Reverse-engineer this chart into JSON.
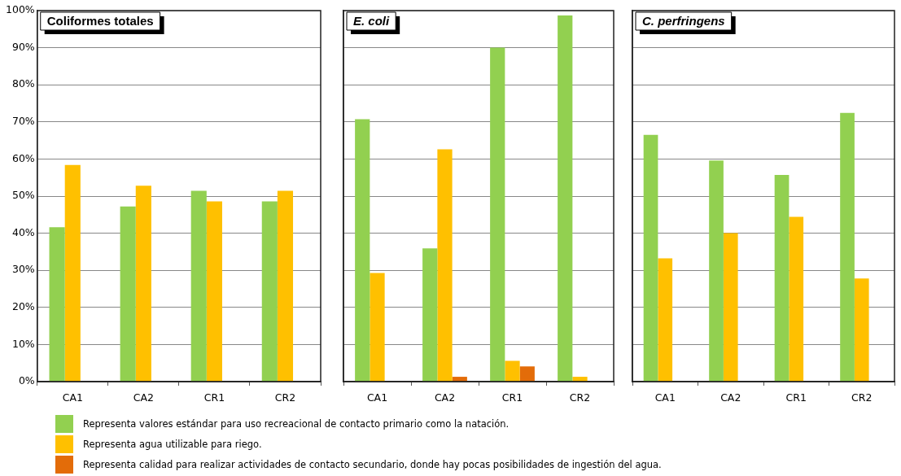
{
  "chart_data": [
    {
      "type": "bar",
      "title": "Coliformes totales",
      "categories": [
        "CA1",
        "CA2",
        "CR1",
        "CR2"
      ],
      "series": [
        {
          "name": "Representa valores estándar para uso recreacional de contacto primario como la natación.",
          "color": "#92d050",
          "values": [
            41.6,
            47.2,
            51.4,
            48.6
          ]
        },
        {
          "name": "Representa agua utilizable para riego.",
          "color": "#ffc000",
          "values": [
            58.4,
            52.8,
            48.6,
            51.4
          ]
        },
        {
          "name": "Representa calidad para realizar actividades de contacto secundario, donde hay pocas posibilidades de ingestión del agua.",
          "color": "#e36c09",
          "values": [
            null,
            null,
            null,
            null
          ]
        }
      ],
      "ylim": [
        0,
        100
      ],
      "yticks": [
        {
          "value": 0,
          "label": "0%"
        },
        {
          "value": 10,
          "label": "10%"
        },
        {
          "value": 20,
          "label": "20%"
        },
        {
          "value": 30,
          "label": "30%"
        },
        {
          "value": 40,
          "label": "40%"
        },
        {
          "value": 50,
          "label": "50%"
        },
        {
          "value": 60,
          "label": "60%"
        },
        {
          "value": 70,
          "label": "70%"
        },
        {
          "value": 80,
          "label": "80%"
        },
        {
          "value": 90,
          "label": "90%"
        },
        {
          "value": 100,
          "label": "100%"
        }
      ],
      "grid": "y",
      "legend": "bottom"
    },
    {
      "type": "bar",
      "title": "E. coli",
      "categories": [
        "CA1",
        "CA2",
        "CR1",
        "CR2"
      ],
      "series": [
        {
          "color": "#92d050",
          "values": [
            70.7,
            35.9,
            90,
            98.7
          ]
        },
        {
          "color": "#ffc000",
          "values": [
            29.3,
            62.6,
            5.6,
            1.3
          ]
        },
        {
          "color": "#e36c09",
          "values": [
            null,
            1.3,
            4.1,
            null
          ]
        }
      ],
      "ylim": [
        0,
        100
      ],
      "yticks": [
        {
          "value": 0,
          "label": null
        },
        {
          "value": 10,
          "label": null
        },
        {
          "value": 20,
          "label": null
        },
        {
          "value": 30,
          "label": null
        },
        {
          "value": 40,
          "label": null
        },
        {
          "value": 50,
          "label": null
        },
        {
          "value": 60,
          "label": null
        },
        {
          "value": 70,
          "label": null
        },
        {
          "value": 80,
          "label": null
        },
        {
          "value": 90,
          "label": null
        },
        {
          "value": 100,
          "label": null
        }
      ],
      "grid": "y",
      "tick_labels": "x"
    },
    {
      "type": "bar",
      "title": "C. perfringens",
      "categories": [
        "CA1",
        "CA2",
        "CR1",
        "CR2"
      ],
      "series": [
        {
          "color": "#92d050",
          "values": [
            66.5,
            59.6,
            55.7,
            72.4
          ]
        },
        {
          "color": "#ffc000",
          "values": [
            33.2,
            40,
            44.4,
            27.8
          ]
        },
        {
          "color": "#e36c09",
          "values": [
            null,
            null,
            null,
            null
          ]
        }
      ],
      "ylim": [
        0,
        100
      ],
      "yticks": [
        {
          "value": 0,
          "label": null
        },
        {
          "value": 10,
          "label": null
        },
        {
          "value": 20,
          "label": null
        },
        {
          "value": 30,
          "label": null
        },
        {
          "value": 40,
          "label": null
        },
        {
          "value": 50,
          "label": null
        },
        {
          "value": 60,
          "label": null
        },
        {
          "value": 70,
          "label": null
        },
        {
          "value": 80,
          "label": null
        },
        {
          "value": 90,
          "label": null
        },
        {
          "value": 100,
          "label": null
        }
      ],
      "grid": "y",
      "tick_labels": "x"
    }
  ]
}
